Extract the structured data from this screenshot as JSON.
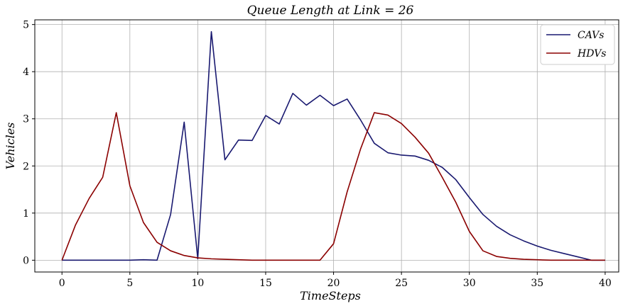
{
  "chart_data": {
    "type": "line",
    "title": "Queue Length at Link = 26",
    "xlabel": "TimeSteps",
    "ylabel": "Vehicles",
    "xlim": [
      -2,
      41
    ],
    "ylim": [
      -0.25,
      5.1
    ],
    "xticks": [
      0,
      5,
      10,
      15,
      20,
      25,
      30,
      35,
      40
    ],
    "yticks": [
      0,
      1,
      2,
      3,
      4,
      5
    ],
    "grid": true,
    "legend_position": "top-right",
    "x": [
      0,
      1,
      2,
      3,
      4,
      5,
      6,
      7,
      8,
      9,
      10,
      11,
      12,
      13,
      14,
      15,
      16,
      17,
      18,
      19,
      20,
      21,
      22,
      23,
      24,
      25,
      26,
      27,
      28,
      29,
      30,
      31,
      32,
      33,
      34,
      35,
      36,
      37,
      38,
      39,
      40
    ],
    "series": [
      {
        "name": "CAVs",
        "color": "#191970",
        "values": [
          0,
          0,
          0,
          0,
          0,
          0,
          0.01,
          0,
          0.97,
          2.93,
          0.03,
          4.85,
          2.13,
          2.55,
          2.54,
          3.07,
          2.89,
          3.54,
          3.29,
          3.5,
          3.28,
          3.42,
          2.97,
          2.48,
          2.28,
          2.23,
          2.21,
          2.12,
          1.97,
          1.71,
          1.33,
          0.97,
          0.72,
          0.54,
          0.41,
          0.3,
          0.21,
          0.14,
          0.07,
          0,
          0
        ]
      },
      {
        "name": "HDVs",
        "color": "#8b0000",
        "values": [
          0,
          0.75,
          1.31,
          1.76,
          3.13,
          1.58,
          0.8,
          0.38,
          0.2,
          0.1,
          0.05,
          0.03,
          0.02,
          0.01,
          0,
          0,
          0,
          0,
          0,
          0,
          0.35,
          1.45,
          2.37,
          3.13,
          3.08,
          2.9,
          2.61,
          2.27,
          1.76,
          1.23,
          0.61,
          0.2,
          0.08,
          0.04,
          0.02,
          0.01,
          0,
          0,
          0,
          0,
          0
        ]
      }
    ]
  }
}
